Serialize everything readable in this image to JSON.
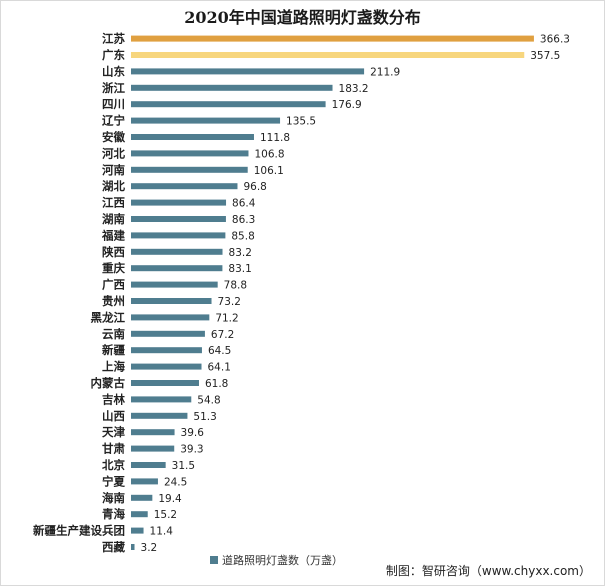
{
  "title": "2020年中国道路照明灯盏数分布",
  "source": "制图：智研咨询（www.chyxx.com）",
  "colors": {
    "default": "#4f7d8f",
    "first": "#e0a040",
    "second": "#f7d67e",
    "text": "#222222"
  },
  "chart_data": {
    "type": "bar",
    "orientation": "horizontal",
    "title": "2020年中国道路照明灯盏数分布",
    "xlabel": "",
    "ylabel": "",
    "xlim": [
      0,
      370
    ],
    "grid": false,
    "legend_position": "bottom",
    "categories": [
      "江苏",
      "广东",
      "山东",
      "浙江",
      "四川",
      "辽宁",
      "安徽",
      "河北",
      "河南",
      "湖北",
      "江西",
      "湖南",
      "福建",
      "陕西",
      "重庆",
      "广西",
      "贵州",
      "黑龙江",
      "云南",
      "新疆",
      "上海",
      "内蒙古",
      "吉林",
      "山西",
      "天津",
      "甘肃",
      "北京",
      "宁夏",
      "海南",
      "青海",
      "新疆生产建设兵团",
      "西藏"
    ],
    "series": [
      {
        "name": "道路照明灯盏数（万盏）",
        "values": [
          366.3,
          357.5,
          211.9,
          183.2,
          176.9,
          135.5,
          111.8,
          106.8,
          106.1,
          96.8,
          86.4,
          86.3,
          85.8,
          83.2,
          83.1,
          78.8,
          73.2,
          71.2,
          67.2,
          64.5,
          64.1,
          61.8,
          54.8,
          51.3,
          39.6,
          39.3,
          31.5,
          24.5,
          19.4,
          15.2,
          11.4,
          3.2
        ],
        "labels": [
          "366.3",
          "357.5",
          "211.9",
          "183.2",
          "176.9",
          "135.5",
          "111.8",
          "106.8",
          "106.1",
          "96.8",
          "86.4",
          "86.3",
          "85.8",
          "83.2",
          "83.1",
          "78.8",
          "73.2",
          "71.2",
          "67.2",
          "64.5",
          "64.1",
          "61.8",
          "54.8",
          "51.3",
          "39.6",
          "39.3",
          "31.5",
          "24.5",
          "19.4",
          "15.2",
          "11.4",
          "3.2"
        ]
      }
    ]
  }
}
